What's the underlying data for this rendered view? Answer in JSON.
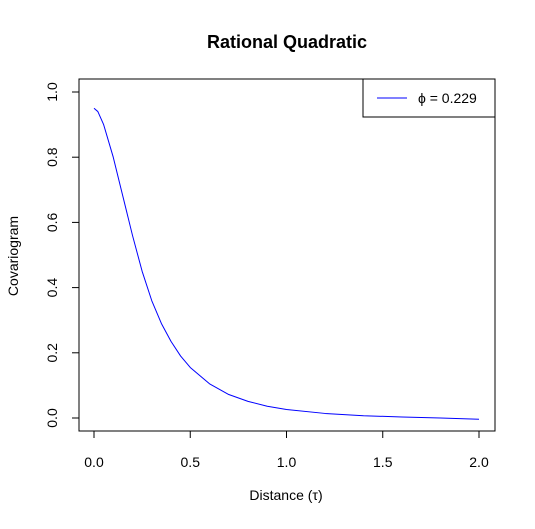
{
  "chart_data": {
    "type": "line",
    "title": "Rational Quadratic",
    "xlabel": "Distance (τ)",
    "ylabel": "Covariogram",
    "xlim": [
      0,
      2
    ],
    "ylim": [
      0,
      1
    ],
    "x_ticks": [
      "0.0",
      "0.5",
      "1.0",
      "1.5",
      "2.0"
    ],
    "y_ticks": [
      "0.0",
      "0.2",
      "0.4",
      "0.6",
      "0.8",
      "1.0"
    ],
    "legend": {
      "placement": "top-right",
      "label": "ϕ = 0.229"
    },
    "series": [
      {
        "name": "ϕ = 0.229",
        "color": "#0000ff",
        "x": [
          0,
          0.02,
          0.05,
          0.1,
          0.15,
          0.2,
          0.25,
          0.3,
          0.35,
          0.4,
          0.45,
          0.5,
          0.6,
          0.7,
          0.8,
          0.9,
          1.0,
          1.2,
          1.4,
          1.6,
          1.8,
          2.0
        ],
        "y": [
          0.95,
          0.94,
          0.9,
          0.8,
          0.68,
          0.56,
          0.45,
          0.36,
          0.29,
          0.235,
          0.19,
          0.155,
          0.105,
          0.072,
          0.051,
          0.036,
          0.026,
          0.014,
          0.007,
          0.003,
          0.0,
          -0.004
        ]
      }
    ]
  }
}
